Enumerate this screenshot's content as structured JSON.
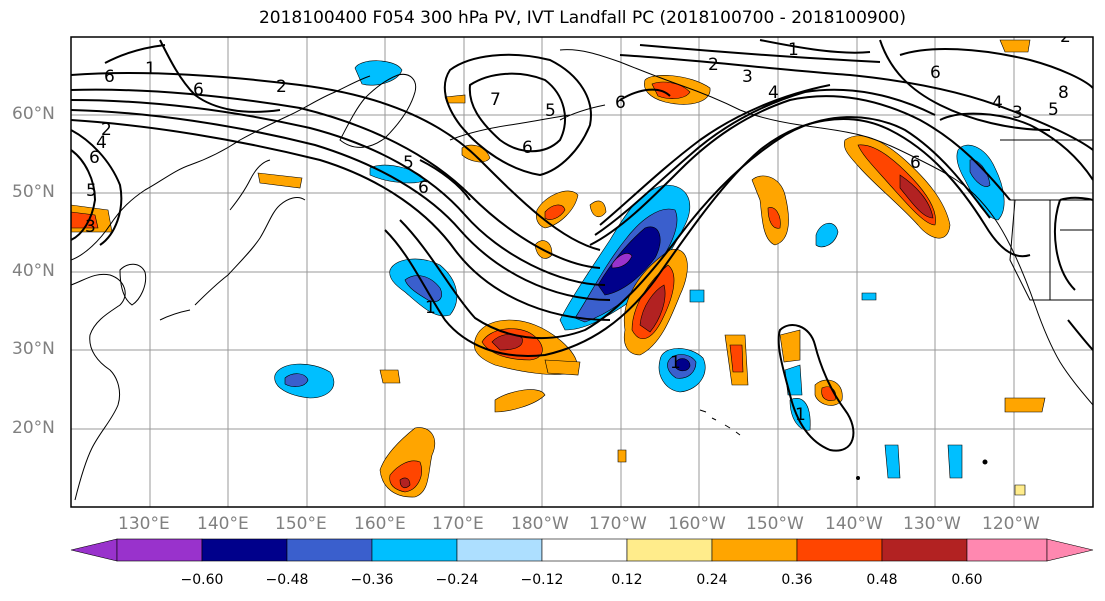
{
  "title": "2018100400 F054 300 hPa PV, IVT Landfall PC (2018100700 - 2018100900)",
  "latitude_labels": [
    "60°N",
    "50°N",
    "40°N",
    "30°N",
    "20°N"
  ],
  "longitude_labels": [
    "130°E",
    "140°E",
    "150°E",
    "160°E",
    "170°E",
    "180°W",
    "170°W",
    "160°W",
    "150°W",
    "140°W",
    "130°W",
    "120°W"
  ],
  "colorbar": {
    "tick_labels": [
      "−0.60",
      "−0.48",
      "−0.36",
      "−0.24",
      "−0.12",
      "0.12",
      "0.24",
      "0.36",
      "0.48",
      "0.60"
    ],
    "colors": [
      "#9932CC",
      "#00008B",
      "#3A5FCD",
      "#00BFFF",
      "#ADDFFF",
      "#FFFFFF",
      "#FFEC8B",
      "#FFA500",
      "#FF4500",
      "#B22222",
      "#FF88B0"
    ]
  },
  "contour_labels": [
    "1",
    "2",
    "3",
    "4",
    "5",
    "6",
    "6",
    "6",
    "5",
    "6",
    "2",
    "6",
    "6",
    "2",
    "3",
    "4",
    "1",
    "1",
    "1",
    "1",
    "5",
    "6",
    "2",
    "8",
    "4",
    "5",
    "3",
    "6",
    "7"
  ],
  "fill_colors": {
    "neg_strong": "#9932CC",
    "neg_darkest": "#00008B",
    "neg_dark": "#3A5FCD",
    "neg_mid": "#00BFFF",
    "neg_light": "#ADDFFF",
    "pos_light": "#FFEC8B",
    "pos_mid": "#FFA500",
    "pos_dark": "#FF4500",
    "pos_darker": "#B22222"
  }
}
